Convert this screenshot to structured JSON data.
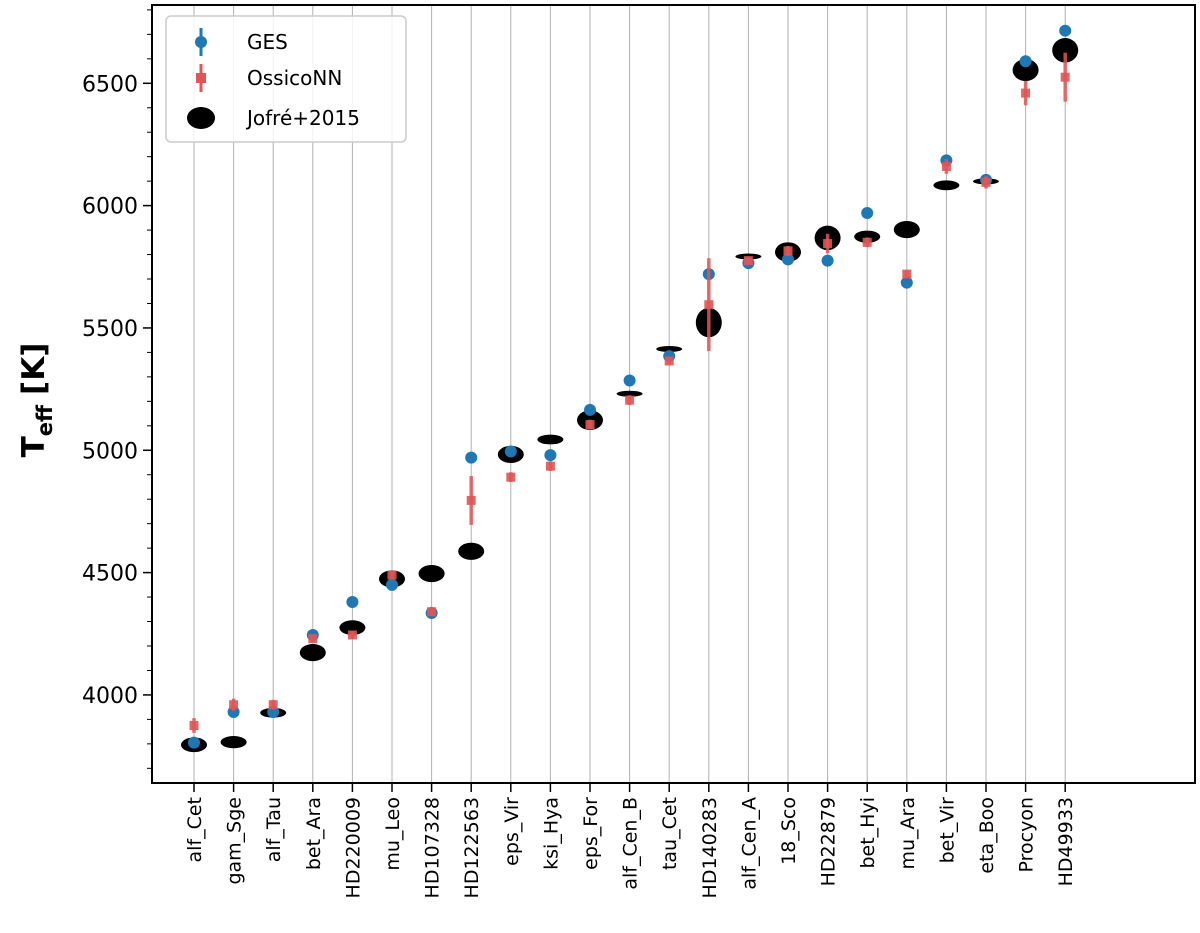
{
  "chart_data": {
    "type": "scatter",
    "ylabel_main": "T",
    "ylabel_sub": "eff",
    "ylabel_unit": "[K]",
    "xlabel": "",
    "ylim": [
      3640,
      6820
    ],
    "yticks": [
      4000,
      4500,
      5000,
      5500,
      6000,
      6500
    ],
    "categories": [
      "alf_Cet",
      "gam_Sge",
      "alf_Tau",
      "bet_Ara",
      "HD220009",
      "mu_Leo",
      "HD107328",
      "HD122563",
      "eps_Vir",
      "ksi_Hya",
      "eps_For",
      "alf_Cen_B",
      "tau_Cet",
      "HD140283",
      "alf_Cen_A",
      "18_Sco",
      "HD22879",
      "bet_Hyi",
      "mu_Ara",
      "bet_Vir",
      "eta_Boo",
      "Procyon",
      "HD49933"
    ],
    "legend": {
      "position": "upper-left",
      "entries": [
        "GES",
        "OssicoNN",
        "Jofré+2015"
      ]
    },
    "colors": {
      "ges": "#1f77b4",
      "ossiconn": "#d62728",
      "jofre": "#000000"
    },
    "series": [
      {
        "name": "GES",
        "values": [
          3805,
          3930,
          3930,
          4245,
          4380,
          4450,
          4335,
          4970,
          4995,
          4980,
          5165,
          5285,
          5385,
          5720,
          5765,
          5780,
          5775,
          5970,
          5685,
          6185,
          6105,
          6590,
          6715
        ]
      },
      {
        "name": "OssicoNN",
        "values": [
          3875,
          3960,
          3960,
          4230,
          4245,
          4490,
          4340,
          4795,
          4890,
          4935,
          5105,
          5205,
          5365,
          5595,
          5775,
          5815,
          5845,
          5850,
          5720,
          6160,
          6095,
          6460,
          6525
        ],
        "errors": [
          30,
          25,
          20,
          15,
          15,
          15,
          15,
          100,
          20,
          20,
          20,
          20,
          15,
          190,
          10,
          20,
          40,
          20,
          15,
          30,
          25,
          50,
          100
        ]
      },
      {
        "name": "Jofré+2015",
        "values": [
          3796,
          3807,
          3927,
          4173,
          4275,
          4474,
          4496,
          4587,
          4983,
          5044,
          5123,
          5231,
          5414,
          5522,
          5792,
          5810,
          5868,
          5873,
          5902,
          6083,
          6099,
          6554,
          6635
        ],
        "uncertainties": [
          30,
          25,
          20,
          35,
          30,
          35,
          35,
          35,
          35,
          20,
          40,
          10,
          10,
          60,
          10,
          40,
          50,
          25,
          35,
          20,
          10,
          45,
          50
        ]
      }
    ]
  }
}
